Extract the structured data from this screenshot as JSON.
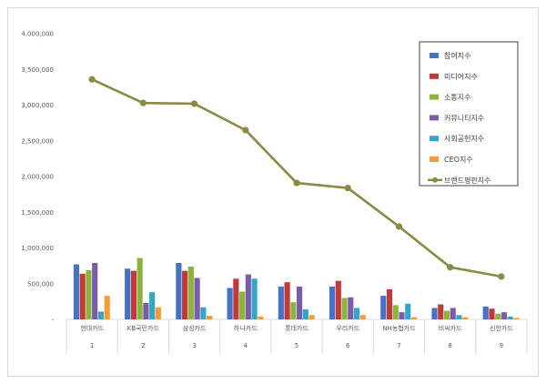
{
  "chart_data": {
    "type": "bar",
    "categories": [
      "현대카드",
      "KB국민카드",
      "삼성카드",
      "하나카드",
      "롯데카드",
      "우리카드",
      "NH농협카드",
      "비씨카드",
      "신한카드"
    ],
    "category_numbers": [
      "1",
      "2",
      "3",
      "4",
      "5",
      "6",
      "7",
      "8",
      "9"
    ],
    "ylim": [
      0,
      4000000
    ],
    "y_ticks": [
      {
        "value": 0,
        "label": "-"
      },
      {
        "value": 500000,
        "label": "500,000"
      },
      {
        "value": 1000000,
        "label": "1,000,000"
      },
      {
        "value": 1500000,
        "label": "1,500,000"
      },
      {
        "value": 2000000,
        "label": "2,000,000"
      },
      {
        "value": 2500000,
        "label": "2,500,000"
      },
      {
        "value": 3000000,
        "label": "3,000,000"
      },
      {
        "value": 3500000,
        "label": "3,500,000"
      },
      {
        "value": 4000000,
        "label": "4,000,000"
      }
    ],
    "grid": false,
    "legend_position": "top-right",
    "series": [
      {
        "name": "참여지수",
        "kind": "bar",
        "color": "#4472c4",
        "values": [
          770000,
          710000,
          790000,
          440000,
          460000,
          460000,
          330000,
          160000,
          180000
        ]
      },
      {
        "name": "미디어지수",
        "kind": "bar",
        "color": "#c0393b",
        "values": [
          640000,
          680000,
          680000,
          570000,
          520000,
          540000,
          420000,
          210000,
          150000
        ]
      },
      {
        "name": "소통지수",
        "kind": "bar",
        "color": "#8db33f",
        "values": [
          690000,
          860000,
          740000,
          390000,
          240000,
          300000,
          200000,
          120000,
          80000
        ]
      },
      {
        "name": "커뮤니티지수",
        "kind": "bar",
        "color": "#7b5ca8",
        "values": [
          790000,
          230000,
          580000,
          630000,
          460000,
          310000,
          100000,
          160000,
          100000
        ]
      },
      {
        "name": "사회공헌지수",
        "kind": "bar",
        "color": "#33a6c8",
        "values": [
          110000,
          380000,
          170000,
          570000,
          140000,
          160000,
          220000,
          60000,
          40000
        ]
      },
      {
        "name": "CEO지수",
        "kind": "bar",
        "color": "#f39c37",
        "values": [
          330000,
          170000,
          50000,
          40000,
          60000,
          60000,
          30000,
          30000,
          20000
        ]
      },
      {
        "name": "브랜드평판지수",
        "kind": "line",
        "color": "#8a8a45",
        "values": [
          3360000,
          3030000,
          3020000,
          2650000,
          1910000,
          1840000,
          1300000,
          730000,
          600000
        ]
      }
    ]
  }
}
